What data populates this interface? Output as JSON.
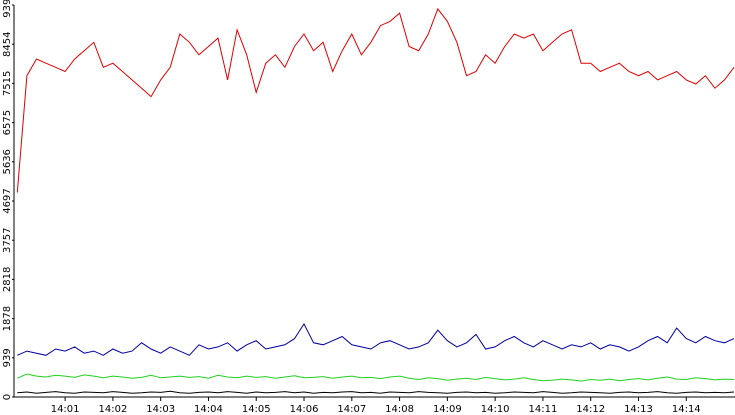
{
  "chart_data": {
    "type": "line",
    "x": [
      840.0,
      840.2,
      840.4,
      840.6,
      840.8,
      841.0,
      841.2,
      841.4,
      841.6,
      841.8,
      842.0,
      842.2,
      842.4,
      842.6,
      842.8,
      843.0,
      843.2,
      843.4,
      843.6,
      843.8,
      844.0,
      844.2,
      844.4,
      844.6,
      844.8,
      845.0,
      845.2,
      845.4,
      845.6,
      845.8,
      846.0,
      846.2,
      846.4,
      846.6,
      846.8,
      847.0,
      847.2,
      847.4,
      847.6,
      847.8,
      848.0,
      848.2,
      848.4,
      848.6,
      848.8,
      849.0,
      849.2,
      849.4,
      849.6,
      849.8,
      850.0,
      850.2,
      850.4,
      850.6,
      850.8,
      851.0,
      851.2,
      851.4,
      851.6,
      851.8,
      852.0,
      852.2,
      852.4,
      852.6,
      852.8,
      853.0,
      853.2,
      853.4,
      853.6,
      853.8,
      854.0,
      854.2,
      854.4,
      854.6,
      854.8,
      855.0
    ],
    "series": [
      {
        "color": "#e00000",
        "values": [
          4900,
          7700,
          8100,
          8000,
          7900,
          7800,
          8100,
          8300,
          8500,
          7900,
          8000,
          7800,
          7600,
          7400,
          7200,
          7600,
          7900,
          8700,
          8500,
          8200,
          8400,
          8600,
          7600,
          8800,
          8200,
          7300,
          8000,
          8200,
          7900,
          8400,
          8700,
          8300,
          8500,
          7800,
          8300,
          8700,
          8200,
          8500,
          8900,
          9000,
          9200,
          8400,
          8300,
          8700,
          9300,
          9000,
          8500,
          7700,
          7800,
          8200,
          8000,
          8400,
          8700,
          8600,
          8700,
          8300,
          8500,
          8700,
          8800,
          8000,
          8000,
          7800,
          7900,
          8000,
          7800,
          7700,
          7800,
          7600,
          7700,
          7800,
          7600,
          7500,
          7700,
          7400,
          7600,
          7900
        ]
      },
      {
        "color": "#0000a0",
        "values": [
          1000,
          1100,
          1050,
          1000,
          1150,
          1100,
          1200,
          1050,
          1100,
          1000,
          1150,
          1050,
          1100,
          1300,
          1150,
          1050,
          1200,
          1100,
          1000,
          1250,
          1150,
          1200,
          1300,
          1100,
          1250,
          1350,
          1150,
          1200,
          1250,
          1400,
          1750,
          1300,
          1250,
          1350,
          1450,
          1250,
          1200,
          1150,
          1300,
          1350,
          1250,
          1150,
          1200,
          1300,
          1600,
          1350,
          1200,
          1300,
          1500,
          1150,
          1200,
          1350,
          1450,
          1300,
          1200,
          1350,
          1250,
          1150,
          1250,
          1200,
          1300,
          1150,
          1250,
          1200,
          1100,
          1200,
          1350,
          1450,
          1300,
          1650,
          1400,
          1300,
          1450,
          1350,
          1300,
          1400
        ]
      },
      {
        "color": "#20d020",
        "values": [
          450,
          550,
          500,
          480,
          520,
          500,
          470,
          530,
          500,
          460,
          500,
          480,
          450,
          470,
          520,
          460,
          480,
          500,
          470,
          490,
          450,
          520,
          480,
          460,
          500,
          470,
          490,
          450,
          480,
          510,
          460,
          470,
          490,
          450,
          480,
          500,
          460,
          470,
          440,
          480,
          500,
          450,
          420,
          460,
          440,
          400,
          430,
          450,
          420,
          470,
          440,
          410,
          430,
          460,
          420,
          390,
          400,
          430,
          410,
          380,
          420,
          400,
          430,
          390,
          420,
          440,
          410,
          450,
          480,
          430,
          420,
          460,
          440,
          410,
          430,
          420
        ]
      },
      {
        "color": "#000000",
        "values": [
          100,
          120,
          90,
          110,
          130,
          100,
          90,
          120,
          110,
          100,
          130,
          110,
          90,
          100,
          120,
          110,
          140,
          100,
          90,
          110,
          120,
          100,
          130,
          110,
          90,
          120,
          100,
          110,
          130,
          100,
          120,
          90,
          110,
          100,
          120,
          130,
          100,
          110,
          90,
          120,
          110,
          100,
          130,
          110,
          100,
          90,
          110,
          120,
          100,
          110,
          90,
          100,
          120,
          110,
          100,
          130,
          110,
          90,
          100,
          120,
          110,
          100,
          90,
          110,
          120,
          100,
          110,
          130,
          100,
          90,
          110,
          120,
          100,
          110,
          100,
          120
        ]
      }
    ],
    "xlim": [
      839.93,
      855.02
    ],
    "xticks": [
      {
        "value": 841,
        "label": "14:01"
      },
      {
        "value": 842,
        "label": "14:02"
      },
      {
        "value": 843,
        "label": "14:03"
      },
      {
        "value": 844,
        "label": "14:04"
      },
      {
        "value": 845,
        "label": "14:05"
      },
      {
        "value": 846,
        "label": "14:06"
      },
      {
        "value": 847,
        "label": "14:07"
      },
      {
        "value": 848,
        "label": "14:08"
      },
      {
        "value": 849,
        "label": "14:09"
      },
      {
        "value": 850,
        "label": "14:10"
      },
      {
        "value": 851,
        "label": "14:11"
      },
      {
        "value": 852,
        "label": "14:12"
      },
      {
        "value": 853,
        "label": "14:13"
      },
      {
        "value": 854,
        "label": "14:14"
      }
    ],
    "ylim": [
      0,
      9394
    ],
    "yticks": [
      0,
      939,
      1878,
      2818,
      3757,
      4697,
      5636,
      6575,
      7515,
      8454,
      9394
    ]
  }
}
